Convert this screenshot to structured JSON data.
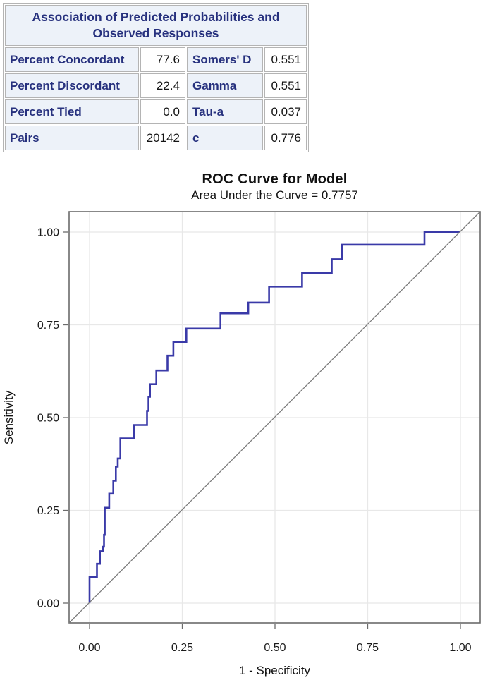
{
  "assoc_table": {
    "title": "Association of Predicted Probabilities and Observed Responses",
    "rows": [
      {
        "label": "Percent Concordant",
        "value": "77.6",
        "stat": "Somers' D",
        "stat_value": "0.551"
      },
      {
        "label": "Percent Discordant",
        "value": "22.4",
        "stat": "Gamma",
        "stat_value": "0.551"
      },
      {
        "label": "Percent Tied",
        "value": "0.0",
        "stat": "Tau-a",
        "stat_value": "0.037"
      },
      {
        "label": "Pairs",
        "value": "20142",
        "stat": "c",
        "stat_value": "0.776"
      }
    ]
  },
  "chart_data": {
    "type": "line",
    "title": "ROC Curve for Model",
    "subtitle": "Area Under the Curve = 0.7757",
    "xlabel": "1 - Specificity",
    "ylabel": "Sensitivity",
    "xlim": [
      0,
      1
    ],
    "ylim": [
      0,
      1
    ],
    "grid": true,
    "legend_position": "none",
    "x_axis": {
      "tick_values": [
        0,
        0.25,
        0.5,
        0.75,
        1.0
      ],
      "tick_labels": [
        "0.00",
        "0.25",
        "0.50",
        "0.75",
        "1.00"
      ]
    },
    "y_axis": {
      "tick_values": [
        0,
        0.25,
        0.5,
        0.75,
        1.0
      ],
      "tick_labels": [
        "0.00",
        "0.25",
        "0.50",
        "0.75",
        "1.00"
      ]
    },
    "series": [
      {
        "name": "ROC step curve",
        "color": "#3A3AA8",
        "width": 2.6,
        "points": [
          [
            0.0,
            0.0
          ],
          [
            0.0,
            0.07
          ],
          [
            0.02,
            0.07
          ],
          [
            0.02,
            0.106
          ],
          [
            0.028,
            0.106
          ],
          [
            0.028,
            0.14
          ],
          [
            0.036,
            0.14
          ],
          [
            0.036,
            0.152
          ],
          [
            0.039,
            0.152
          ],
          [
            0.039,
            0.184
          ],
          [
            0.041,
            0.184
          ],
          [
            0.041,
            0.257
          ],
          [
            0.053,
            0.257
          ],
          [
            0.053,
            0.295
          ],
          [
            0.064,
            0.295
          ],
          [
            0.064,
            0.33
          ],
          [
            0.071,
            0.33
          ],
          [
            0.071,
            0.368
          ],
          [
            0.076,
            0.368
          ],
          [
            0.076,
            0.39
          ],
          [
            0.083,
            0.39
          ],
          [
            0.083,
            0.444
          ],
          [
            0.12,
            0.444
          ],
          [
            0.12,
            0.48
          ],
          [
            0.155,
            0.48
          ],
          [
            0.155,
            0.518
          ],
          [
            0.159,
            0.518
          ],
          [
            0.159,
            0.556
          ],
          [
            0.163,
            0.556
          ],
          [
            0.163,
            0.59
          ],
          [
            0.18,
            0.59
          ],
          [
            0.18,
            0.627
          ],
          [
            0.21,
            0.627
          ],
          [
            0.21,
            0.667
          ],
          [
            0.226,
            0.667
          ],
          [
            0.226,
            0.704
          ],
          [
            0.261,
            0.704
          ],
          [
            0.261,
            0.74
          ],
          [
            0.353,
            0.74
          ],
          [
            0.353,
            0.781
          ],
          [
            0.428,
            0.781
          ],
          [
            0.428,
            0.81
          ],
          [
            0.484,
            0.81
          ],
          [
            0.484,
            0.853
          ],
          [
            0.573,
            0.853
          ],
          [
            0.573,
            0.89
          ],
          [
            0.653,
            0.89
          ],
          [
            0.653,
            0.927
          ],
          [
            0.681,
            0.927
          ],
          [
            0.681,
            0.966
          ],
          [
            0.903,
            0.966
          ],
          [
            0.903,
            1.0
          ],
          [
            1.0,
            1.0
          ]
        ]
      },
      {
        "name": "reference diagonal",
        "color": "#7B7B7B",
        "width": 1.3,
        "points": [
          [
            0,
            0
          ],
          [
            1,
            1
          ]
        ],
        "spans_frame": true
      }
    ],
    "colors": {
      "frame": "#6B6B6B",
      "grid": "#E8E8E8",
      "tick": "#6B6B6B",
      "tick_label": "#1A1A1A"
    }
  }
}
